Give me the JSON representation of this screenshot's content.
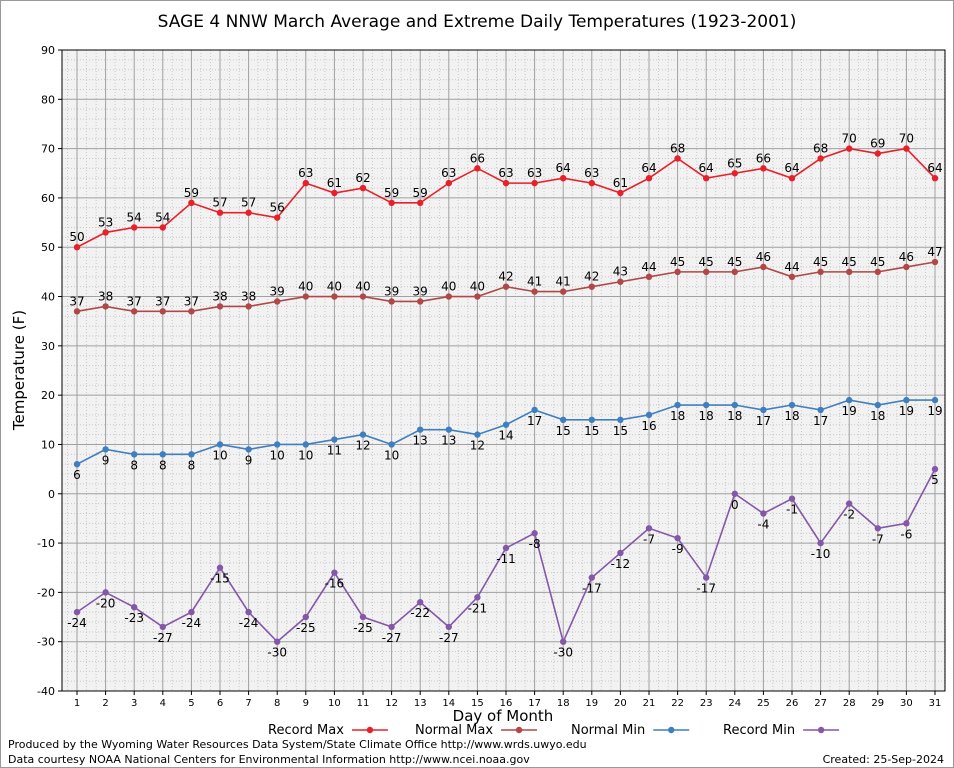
{
  "chart_data": {
    "type": "line",
    "title": "SAGE 4 NNW March Average and Extreme Daily Temperatures (1923-2001)",
    "xlabel": "Day of Month",
    "ylabel": "Temperature (F)",
    "x": [
      1,
      2,
      3,
      4,
      5,
      6,
      7,
      8,
      9,
      10,
      11,
      12,
      13,
      14,
      15,
      16,
      17,
      18,
      19,
      20,
      21,
      22,
      23,
      24,
      25,
      26,
      27,
      28,
      29,
      30,
      31
    ],
    "ylim": [
      -40,
      90
    ],
    "yticks": [
      -40,
      -30,
      -20,
      -10,
      0,
      10,
      20,
      30,
      40,
      50,
      60,
      70,
      80,
      90
    ],
    "grid": true,
    "legend_position": "bottom",
    "series": [
      {
        "name": "Record Max",
        "color": "#e8202a",
        "label_side": "above",
        "values": [
          50,
          53,
          54,
          54,
          59,
          57,
          57,
          56,
          63,
          61,
          62,
          59,
          59,
          63,
          66,
          63,
          63,
          64,
          63,
          61,
          64,
          68,
          64,
          65,
          66,
          64,
          68,
          70,
          69,
          70,
          64
        ]
      },
      {
        "name": "Normal Max",
        "color": "#b04848",
        "label_side": "above",
        "values": [
          37,
          38,
          37,
          37,
          37,
          38,
          38,
          39,
          40,
          40,
          40,
          39,
          39,
          40,
          40,
          42,
          41,
          41,
          42,
          43,
          44,
          45,
          45,
          45,
          46,
          44,
          45,
          45,
          45,
          46,
          47
        ]
      },
      {
        "name": "Normal Min",
        "color": "#3f7fbf",
        "label_side": "below",
        "values": [
          6,
          9,
          8,
          8,
          8,
          10,
          9,
          10,
          10,
          11,
          12,
          10,
          13,
          13,
          12,
          14,
          17,
          15,
          15,
          15,
          16,
          18,
          18,
          18,
          17,
          18,
          17,
          19,
          18,
          19,
          19
        ]
      },
      {
        "name": "Record Min",
        "color": "#8457a8",
        "label_side": "below",
        "values": [
          -24,
          -20,
          -23,
          -27,
          -24,
          -15,
          -24,
          -30,
          -25,
          -16,
          -25,
          -27,
          -22,
          -27,
          -21,
          -11,
          -8,
          -30,
          -17,
          -12,
          -7,
          -9,
          -17,
          0,
          -4,
          -1,
          -10,
          -2,
          -7,
          -6,
          5
        ]
      }
    ]
  },
  "footer": {
    "credit_line1": "Produced by the Wyoming Water Resources Data System/State Climate Office http://www.wrds.uwyo.edu",
    "credit_line2": "Data courtesy NOAA National Centers for Environmental Information http://www.ncei.noaa.gov",
    "created": "Created:  25-Sep-2024"
  }
}
